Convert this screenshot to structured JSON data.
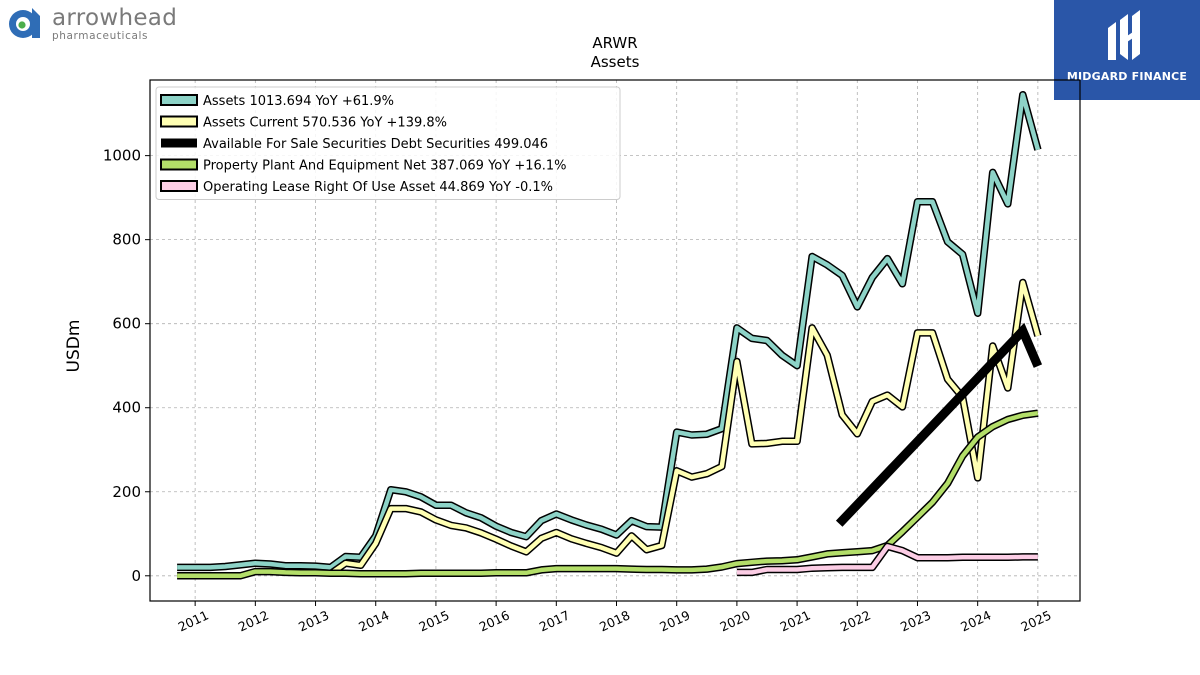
{
  "logo": {
    "name": "arrowhead",
    "sub": "pharmaceuticals"
  },
  "brand": {
    "name": "MIDGARD FINANCE",
    "color": "#2a56a8"
  },
  "chart_data": {
    "type": "line",
    "title": "ARWR",
    "subtitle": "Assets",
    "ylabel": "USDm",
    "xlabel": "",
    "ylim": [
      -60,
      1180
    ],
    "xlim": [
      2010.25,
      2025.7
    ],
    "grid": true,
    "legend_position": "top-left",
    "yticks": [
      0,
      200,
      400,
      600,
      800,
      1000
    ],
    "xticks": [
      "2011",
      "2012",
      "2013",
      "2014",
      "2015",
      "2016",
      "2017",
      "2018",
      "2019",
      "2020",
      "2021",
      "2022",
      "2023",
      "2024",
      "2025"
    ],
    "series": [
      {
        "name": "Assets",
        "legend": "Assets  1013.694 YoY +61.9%",
        "color": "#8dd3c7",
        "width": 4,
        "x": [
          2010.7,
          2011.0,
          2011.25,
          2011.5,
          2011.75,
          2012.0,
          2012.25,
          2012.5,
          2012.75,
          2013.0,
          2013.25,
          2013.5,
          2013.75,
          2014.0,
          2014.25,
          2014.5,
          2014.75,
          2015.0,
          2015.25,
          2015.5,
          2015.75,
          2016.0,
          2016.25,
          2016.5,
          2016.75,
          2017.0,
          2017.25,
          2017.5,
          2017.75,
          2018.0,
          2018.25,
          2018.5,
          2018.75,
          2019.0,
          2019.25,
          2019.5,
          2019.75,
          2020.0,
          2020.25,
          2020.5,
          2020.75,
          2021.0,
          2021.25,
          2021.5,
          2021.75,
          2022.0,
          2022.25,
          2022.5,
          2022.75,
          2023.0,
          2023.25,
          2023.5,
          2023.75,
          2024.0,
          2024.25,
          2024.5,
          2024.75,
          2025.0
        ],
        "y": [
          20,
          20,
          20,
          22,
          26,
          30,
          28,
          24,
          24,
          23,
          20,
          46,
          44,
          95,
          205,
          200,
          188,
          168,
          168,
          150,
          138,
          118,
          103,
          93,
          131,
          147,
          133,
          121,
          111,
          97,
          131,
          117,
          116,
          342,
          335,
          337,
          350,
          590,
          565,
          560,
          525,
          500,
          760,
          740,
          715,
          640,
          710,
          755,
          695,
          890,
          890,
          795,
          765,
          625,
          960,
          885,
          1145,
          1014
        ]
      },
      {
        "name": "Assets Current",
        "legend": "Assets Current  570.536 YoY +139.8%",
        "color": "#ffffb3",
        "width": 4,
        "x": [
          2013.25,
          2013.5,
          2013.75,
          2014.0,
          2014.25,
          2014.5,
          2014.75,
          2015.0,
          2015.25,
          2015.5,
          2015.75,
          2016.0,
          2016.25,
          2016.5,
          2016.75,
          2017.0,
          2017.25,
          2017.5,
          2017.75,
          2018.0,
          2018.25,
          2018.5,
          2018.75,
          2019.0,
          2019.25,
          2019.5,
          2019.75,
          2020.0,
          2020.25,
          2020.5,
          2020.75,
          2021.0,
          2021.25,
          2021.5,
          2021.75,
          2022.0,
          2022.25,
          2022.5,
          2022.75,
          2023.0,
          2023.25,
          2023.5,
          2023.75,
          2024.0,
          2024.25,
          2024.5,
          2024.75,
          2025.0
        ],
        "y": [
          5,
          30,
          25,
          77,
          160,
          160,
          152,
          133,
          120,
          114,
          102,
          87,
          71,
          57,
          89,
          103,
          88,
          77,
          67,
          54,
          95,
          62,
          72,
          250,
          235,
          243,
          260,
          510,
          314,
          315,
          320,
          320,
          590,
          525,
          383,
          338,
          415,
          430,
          402,
          578,
          578,
          468,
          425,
          233,
          547,
          447,
          698,
          571
        ]
      },
      {
        "name": "Available For Sale Securities Debt Securities",
        "legend": "Available For Sale Securities Debt Securities  499.046",
        "color": "#000000",
        "width": 8,
        "x": [
          2021.7,
          2024.75,
          2025.0
        ],
        "y": [
          124,
          583,
          499
        ]
      },
      {
        "name": "Property Plant And Equipment Net",
        "legend": "Property Plant And Equipment Net  387.069 YoY +16.1%",
        "color": "#b3de69",
        "width": 4,
        "x": [
          2010.7,
          2011.0,
          2011.25,
          2011.5,
          2011.75,
          2012.0,
          2012.25,
          2012.5,
          2012.75,
          2013.0,
          2013.25,
          2013.5,
          2013.75,
          2014.0,
          2014.25,
          2014.5,
          2014.75,
          2015.0,
          2015.25,
          2015.5,
          2015.75,
          2016.0,
          2016.25,
          2016.5,
          2016.75,
          2017.0,
          2017.25,
          2017.5,
          2017.75,
          2018.0,
          2018.25,
          2018.5,
          2018.75,
          2019.0,
          2019.25,
          2019.5,
          2019.75,
          2020.0,
          2020.25,
          2020.5,
          2020.75,
          2021.0,
          2021.25,
          2021.5,
          2021.75,
          2022.0,
          2022.25,
          2022.5,
          2022.75,
          2023.0,
          2023.25,
          2023.5,
          2023.75,
          2024.0,
          2024.25,
          2024.5,
          2024.75,
          2025.0
        ],
        "y": [
          0,
          0,
          0,
          0,
          0,
          10,
          10,
          8,
          7,
          7,
          6,
          6,
          5,
          5,
          5,
          5,
          6,
          6,
          6,
          6,
          6,
          7,
          7,
          7,
          14,
          17,
          17,
          17,
          17,
          17,
          16,
          15,
          15,
          14,
          14,
          16,
          21,
          29,
          32,
          35,
          36,
          38,
          45,
          52,
          55,
          57,
          60,
          72,
          105,
          140,
          175,
          220,
          285,
          330,
          355,
          372,
          382,
          387
        ]
      },
      {
        "name": "Operating Lease Right Of Use Asset",
        "legend": "Operating Lease Right Of Use Asset  44.869 YoY -0.1%",
        "color": "#fccde5",
        "width": 4,
        "x": [
          2020.0,
          2020.25,
          2020.5,
          2020.75,
          2021.0,
          2021.25,
          2021.5,
          2021.75,
          2022.0,
          2022.25,
          2022.5,
          2022.75,
          2023.0,
          2023.25,
          2023.5,
          2023.75,
          2024.0,
          2024.25,
          2024.5,
          2024.75,
          2025.0
        ],
        "y": [
          8,
          8,
          15,
          15,
          15,
          18,
          19,
          20,
          20,
          20,
          70,
          60,
          43,
          43,
          43,
          44,
          44,
          44,
          44,
          45,
          45
        ]
      }
    ]
  }
}
